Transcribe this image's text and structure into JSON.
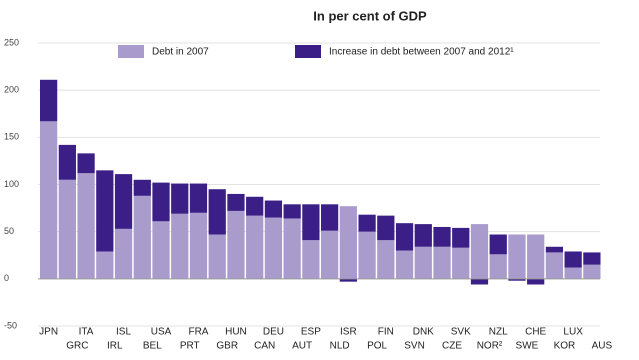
{
  "chart_data": {
    "type": "stacked-bar",
    "title": "In per cent of GDP",
    "categories": [
      "JPN",
      "GRC",
      "ITA",
      "IRL",
      "ISL",
      "BEL",
      "USA",
      "PRT",
      "FRA",
      "GBR",
      "HUN",
      "CAN",
      "DEU",
      "AUT",
      "ESP",
      "NLD",
      "ISR",
      "POL",
      "FIN",
      "SVN",
      "DNK",
      "CZE",
      "SVK",
      "NOR²",
      "NZL",
      "SWE",
      "CHE",
      "KOR",
      "LUX",
      "AUS"
    ],
    "series": [
      {
        "name": "Debt in 2007",
        "color": "#a99bcc",
        "values": [
          167,
          105,
          112,
          29,
          53,
          88,
          61,
          69,
          70,
          47,
          72,
          67,
          65,
          64,
          41,
          51,
          77,
          50,
          41,
          30,
          34,
          34,
          33,
          58,
          26,
          47,
          47,
          28,
          12,
          15
        ]
      },
      {
        "name": "Increase in debt between 2007 and 2012¹",
        "color": "#3b1f86",
        "values": [
          44,
          37,
          21,
          86,
          58,
          17,
          41,
          32,
          31,
          48,
          18,
          20,
          18,
          15,
          38,
          28,
          -3,
          18,
          26,
          29,
          24,
          21,
          21,
          -6,
          21,
          -2,
          -6,
          6,
          17,
          13
        ]
      }
    ],
    "ylim": [
      -50,
      250
    ],
    "yticks": [
      -50,
      0,
      50,
      100,
      150,
      200,
      250
    ],
    "grid": true
  }
}
